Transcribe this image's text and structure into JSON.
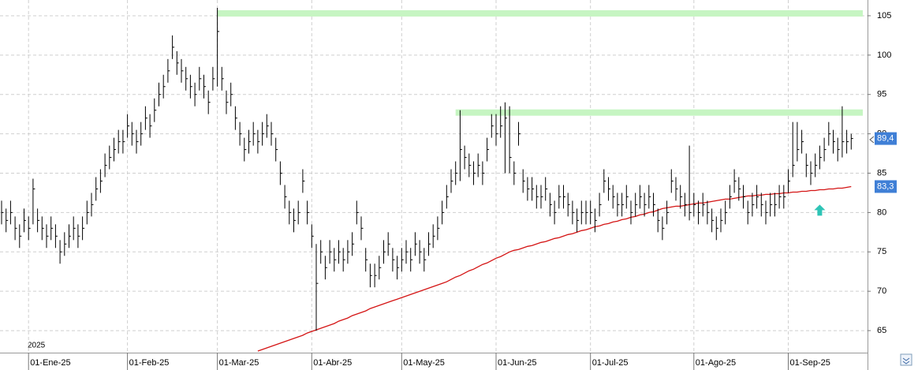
{
  "chart_data": {
    "type": "ohlc",
    "year_label": "2025",
    "categories": [
      null,
      null,
      null,
      null,
      null,
      null,
      "01-Ene-25",
      null,
      null,
      null,
      null,
      null,
      null,
      null,
      null,
      null,
      null,
      null,
      null,
      null,
      null,
      null,
      null,
      null,
      null,
      null,
      null,
      null,
      "01-Feb-25",
      null,
      null,
      null,
      null,
      null,
      null,
      null,
      null,
      null,
      null,
      null,
      null,
      null,
      null,
      null,
      null,
      null,
      null,
      null,
      "01-Mar-25",
      null,
      null,
      null,
      null,
      null,
      null,
      null,
      null,
      null,
      null,
      null,
      null,
      null,
      null,
      null,
      null,
      null,
      null,
      null,
      null,
      "01-Abr-25",
      null,
      null,
      null,
      null,
      null,
      null,
      null,
      null,
      null,
      null,
      null,
      null,
      null,
      null,
      null,
      null,
      null,
      null,
      null,
      "01-May-25",
      null,
      null,
      null,
      null,
      null,
      null,
      null,
      null,
      null,
      null,
      null,
      null,
      null,
      null,
      null,
      null,
      null,
      null,
      null,
      null,
      "01-Jun-25",
      null,
      null,
      null,
      null,
      null,
      null,
      null,
      null,
      null,
      null,
      null,
      null,
      null,
      null,
      null,
      null,
      null,
      null,
      null,
      null,
      "01-Jul-25",
      null,
      null,
      null,
      null,
      null,
      null,
      null,
      null,
      null,
      null,
      null,
      null,
      null,
      null,
      null,
      null,
      null,
      null,
      null,
      null,
      null,
      null,
      "01-Ago-25",
      null,
      null,
      null,
      null,
      null,
      null,
      null,
      null,
      null,
      null,
      null,
      null,
      null,
      null,
      null,
      null,
      null,
      null,
      null,
      null,
      "01-Sep-25",
      null,
      null,
      null,
      null,
      null,
      null,
      null,
      null,
      null,
      null,
      null,
      null,
      null,
      null
    ],
    "ohlc": {
      "color": "#000000",
      "high": [
        81.5,
        80.5,
        81.5,
        79.5,
        78.5,
        80.5,
        79.5,
        84.3,
        80.5,
        79.5,
        78.5,
        79.5,
        78.5,
        76.5,
        77.5,
        78.5,
        79.5,
        78.5,
        79.5,
        81.5,
        82.5,
        84.5,
        85.5,
        87.5,
        88.5,
        89.5,
        90.5,
        90.5,
        92.5,
        91.5,
        90.5,
        91.5,
        93.5,
        92.5,
        94.5,
        96.5,
        97.5,
        99.5,
        102.5,
        100.5,
        99.5,
        98.5,
        97.5,
        96.5,
        98.5,
        97.5,
        95.5,
        98.5,
        106,
        98.5,
        95.5,
        96.5,
        93.5,
        91.5,
        89.5,
        90.5,
        91.5,
        90.5,
        91.5,
        92.5,
        91.5,
        89.5,
        86.5,
        83.5,
        81.5,
        80.5,
        81.5,
        85.5,
        81.5,
        78.5,
        76,
        76.5,
        74.5,
        76.5,
        75.5,
        76.5,
        75.5,
        76.5,
        77.5,
        81.5,
        79.5,
        75.5,
        73.5,
        73.5,
        74.5,
        76.5,
        77.5,
        75.5,
        74.5,
        75.5,
        76.5,
        75.5,
        77.5,
        76.5,
        75.5,
        77.5,
        78.5,
        79.5,
        81.5,
        83.5,
        85.5,
        86.5,
        93,
        88.5,
        87.5,
        86.5,
        87.5,
        86.5,
        89.5,
        92.5,
        92.5,
        93.5,
        94,
        93.5,
        86.5,
        91.5,
        85.5,
        84.5,
        84.5,
        83.5,
        83.5,
        84.5,
        82.5,
        81.5,
        83.5,
        83.5,
        82.5,
        81.5,
        80.5,
        81.5,
        81.5,
        81.5,
        80.5,
        82.5,
        85.5,
        84.5,
        83.5,
        82.5,
        82.5,
        83.5,
        81.5,
        82.5,
        83.5,
        82.5,
        83.5,
        82.5,
        80.5,
        79.5,
        81.5,
        85.5,
        84.5,
        83.5,
        82.5,
        88.5,
        82.5,
        81.5,
        82.5,
        81.5,
        80.5,
        79.5,
        80.5,
        81.5,
        83.5,
        85.5,
        84.5,
        83.5,
        81.5,
        82.5,
        83.5,
        82.5,
        81.5,
        82.5,
        82.5,
        83.5,
        83.5,
        85.5,
        91.5,
        91.5,
        90.5,
        87.5,
        86.5,
        87.5,
        88.5,
        89.5,
        91.5,
        90.5,
        89.5,
        93.5,
        90.5,
        90
      ],
      "low": [
        78.5,
        77.5,
        78.5,
        76.5,
        75.5,
        77.5,
        76.5,
        78.5,
        77.5,
        76.5,
        75.5,
        76.5,
        75.5,
        73.5,
        74.5,
        75.5,
        76.5,
        75.5,
        76.5,
        78.5,
        79.5,
        81.5,
        82.5,
        84.5,
        85.5,
        86.5,
        87.5,
        87.5,
        89.5,
        88.5,
        87.5,
        88.5,
        90.5,
        89.5,
        91.5,
        93.5,
        94.5,
        96.5,
        99.5,
        97.5,
        96.5,
        95.5,
        94.5,
        93.5,
        95.5,
        94.5,
        92.5,
        95.5,
        96,
        95.5,
        92.5,
        93.5,
        90.5,
        88.5,
        86.5,
        87.5,
        88.5,
        87.5,
        88.5,
        89.5,
        88.5,
        86.5,
        83.5,
        80.5,
        78.5,
        77.5,
        78.5,
        82.5,
        78.5,
        75.5,
        65,
        73.5,
        71.5,
        73.5,
        72.5,
        73.5,
        72.5,
        73.5,
        74.5,
        78.5,
        76.5,
        72.5,
        70.5,
        70.5,
        71.5,
        73.5,
        74.5,
        72.5,
        71.5,
        72.5,
        73.5,
        72.5,
        74.5,
        73.5,
        72.5,
        74.5,
        75.5,
        76.5,
        78.5,
        80.5,
        82.5,
        83.5,
        84,
        85.5,
        84.5,
        83.5,
        84.5,
        83.5,
        86.5,
        89.5,
        88.5,
        89.5,
        85,
        85,
        83.5,
        88.5,
        82.5,
        81.5,
        81.5,
        80.5,
        80.5,
        81.5,
        79.5,
        78.5,
        80.5,
        80.5,
        79.5,
        78.5,
        77.5,
        78.5,
        78.5,
        78.5,
        77.5,
        79.5,
        82.5,
        81.5,
        80.5,
        79.5,
        79.5,
        80.5,
        78.5,
        79.5,
        80.5,
        79.5,
        80.5,
        79.5,
        77.5,
        76.5,
        78.5,
        82.5,
        81.5,
        80.5,
        79.5,
        79,
        79.5,
        78.5,
        79.5,
        78.5,
        77.5,
        76.5,
        77.5,
        78.5,
        80.5,
        82.5,
        81.5,
        80.5,
        78.5,
        79.5,
        80.5,
        79.5,
        78.5,
        79.5,
        79.5,
        80.5,
        80.5,
        82.5,
        84.5,
        86.5,
        87.5,
        84.5,
        83.5,
        84.5,
        85.5,
        86.5,
        88.5,
        87.5,
        86.5,
        87,
        87.5,
        88
      ],
      "close": [
        80,
        79,
        80,
        78,
        77,
        79,
        78,
        83,
        79,
        78,
        77,
        78,
        77,
        75,
        76,
        77,
        78,
        77,
        78,
        80,
        81,
        83,
        84,
        86,
        87,
        88,
        89,
        89,
        91,
        90,
        89,
        90,
        92,
        91,
        93,
        95,
        96,
        98,
        101,
        99,
        98,
        97,
        96,
        95,
        97,
        96,
        94,
        97,
        103,
        97,
        94,
        95,
        92,
        90,
        88,
        89,
        90,
        89,
        90,
        91,
        90,
        88,
        85,
        82,
        80,
        79,
        80,
        84,
        80,
        77,
        71,
        75,
        73,
        75,
        74,
        75,
        74,
        75,
        76,
        80,
        78,
        74,
        72,
        72,
        73,
        75,
        76,
        74,
        73,
        74,
        75,
        74,
        76,
        75,
        74,
        76,
        77,
        78,
        80,
        82,
        84,
        85,
        88,
        87,
        86,
        85,
        86,
        85,
        88,
        91,
        90,
        91,
        92,
        87,
        85,
        90,
        84,
        83,
        83,
        82,
        82,
        83,
        81,
        80,
        82,
        82,
        81,
        80,
        79,
        80,
        80,
        80,
        79,
        81,
        84,
        83,
        82,
        81,
        81,
        82,
        80,
        81,
        82,
        81,
        82,
        81,
        79,
        78,
        80,
        84,
        83,
        82,
        81,
        80,
        81,
        80,
        81,
        80,
        79,
        78,
        79,
        80,
        82,
        84,
        83,
        82,
        80,
        81,
        82,
        81,
        80,
        81,
        81,
        82,
        82,
        84,
        86,
        88,
        89,
        86,
        85,
        86,
        87,
        88,
        90,
        89,
        88,
        89,
        89,
        89.4
      ],
      "last_label": "89,4",
      "label_color": "#3f7fd6"
    },
    "ma": {
      "color": "#d41414",
      "label_color": "#3f7fd6",
      "last_label": "83,3",
      "values": [
        null,
        null,
        null,
        null,
        null,
        null,
        null,
        null,
        null,
        null,
        null,
        null,
        null,
        null,
        null,
        null,
        null,
        null,
        null,
        null,
        null,
        null,
        null,
        null,
        null,
        null,
        null,
        null,
        null,
        null,
        null,
        null,
        null,
        null,
        null,
        null,
        null,
        null,
        null,
        null,
        null,
        null,
        null,
        null,
        null,
        null,
        null,
        null,
        null,
        null,
        null,
        null,
        null,
        null,
        null,
        null,
        null,
        62.4,
        62.6,
        62.8,
        63.0,
        63.2,
        63.4,
        63.6,
        63.8,
        64.0,
        64.2,
        64.4,
        64.7,
        64.9,
        65.1,
        65.3,
        65.5,
        65.7,
        65.9,
        66.2,
        66.4,
        66.6,
        66.9,
        67.1,
        67.3,
        67.5,
        67.8,
        68.0,
        68.2,
        68.4,
        68.6,
        68.8,
        69.0,
        69.2,
        69.4,
        69.6,
        69.8,
        70.0,
        70.2,
        70.4,
        70.6,
        70.8,
        71.0,
        71.2,
        71.5,
        71.8,
        72.0,
        72.3,
        72.6,
        72.8,
        73.1,
        73.4,
        73.6,
        73.9,
        74.2,
        74.4,
        74.7,
        75.0,
        75.2,
        75.3,
        75.5,
        75.7,
        75.8,
        76.0,
        76.2,
        76.3,
        76.5,
        76.7,
        76.8,
        77.0,
        77.2,
        77.3,
        77.5,
        77.7,
        77.8,
        78.0,
        78.2,
        78.3,
        78.5,
        78.6,
        78.8,
        78.9,
        79.1,
        79.2,
        79.4,
        79.5,
        79.7,
        79.8,
        80.0,
        80.1,
        80.3,
        80.5,
        80.6,
        80.7,
        80.8,
        80.8,
        80.9,
        81.0,
        81.1,
        81.2,
        81.2,
        81.3,
        81.4,
        81.5,
        81.6,
        81.7,
        81.7,
        81.8,
        81.9,
        82.0,
        82.1,
        82.1,
        82.2,
        82.2,
        82.3,
        82.3,
        82.4,
        82.4,
        82.5,
        82.5,
        82.6,
        82.6,
        82.7,
        82.7,
        82.8,
        82.8,
        82.9,
        82.9,
        83.0,
        83.0,
        83.1,
        83.1,
        83.2,
        83.3
      ]
    },
    "resistances": {
      "color": "#c6f5c2",
      "levels": [
        {
          "value": 105.3,
          "from": 48
        },
        {
          "value": 92.7,
          "from": 101
        }
      ]
    },
    "arrow": {
      "index": 182,
      "value": 80.2,
      "color": "#2ec4b6"
    },
    "ylim": [
      62.2,
      107
    ],
    "yticks": [
      65,
      70,
      75,
      80,
      85,
      90,
      95,
      100,
      105
    ],
    "grid": true
  }
}
